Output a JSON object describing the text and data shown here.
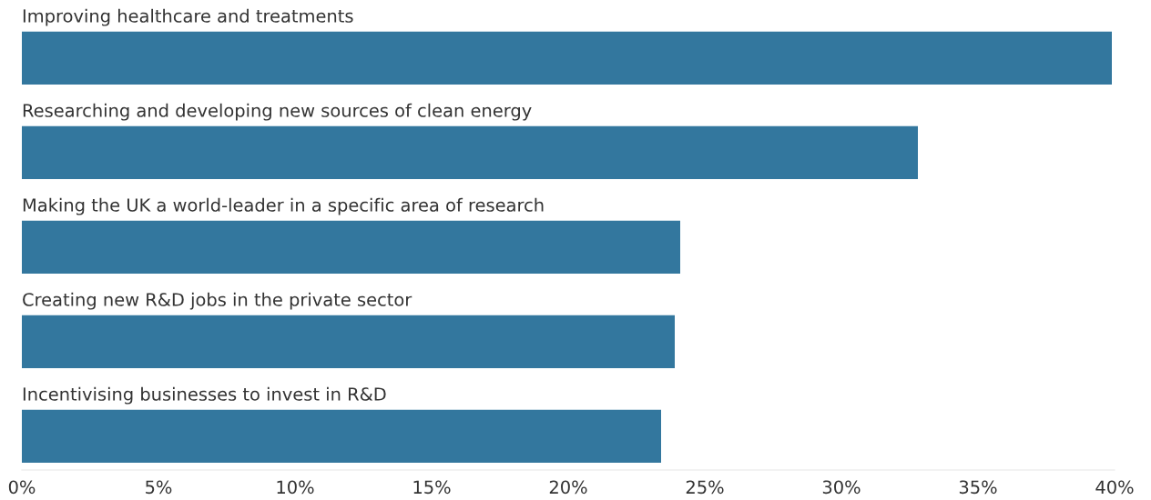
{
  "chart_data": {
    "type": "bar",
    "orientation": "horizontal",
    "categories": [
      "Improving healthcare and treatments",
      "Researching and developing new sources of clean energy",
      "Making the UK a world-leader in a specific area of research",
      "Creating new R&D jobs in the private sector",
      "Incentivising businesses to invest in R&D"
    ],
    "values": [
      39.9,
      32.8,
      24.1,
      23.9,
      23.4
    ],
    "color": "#33779e",
    "xlim": [
      0,
      40
    ],
    "xticks": [
      {
        "value": 0,
        "label": "0%"
      },
      {
        "value": 5,
        "label": "5%"
      },
      {
        "value": 10,
        "label": "10%"
      },
      {
        "value": 15,
        "label": "15%"
      },
      {
        "value": 20,
        "label": "20%"
      },
      {
        "value": 25,
        "label": "25%"
      },
      {
        "value": 30,
        "label": "30%"
      },
      {
        "value": 35,
        "label": "35%"
      },
      {
        "value": 40,
        "label": "40%"
      }
    ],
    "grid": false
  }
}
